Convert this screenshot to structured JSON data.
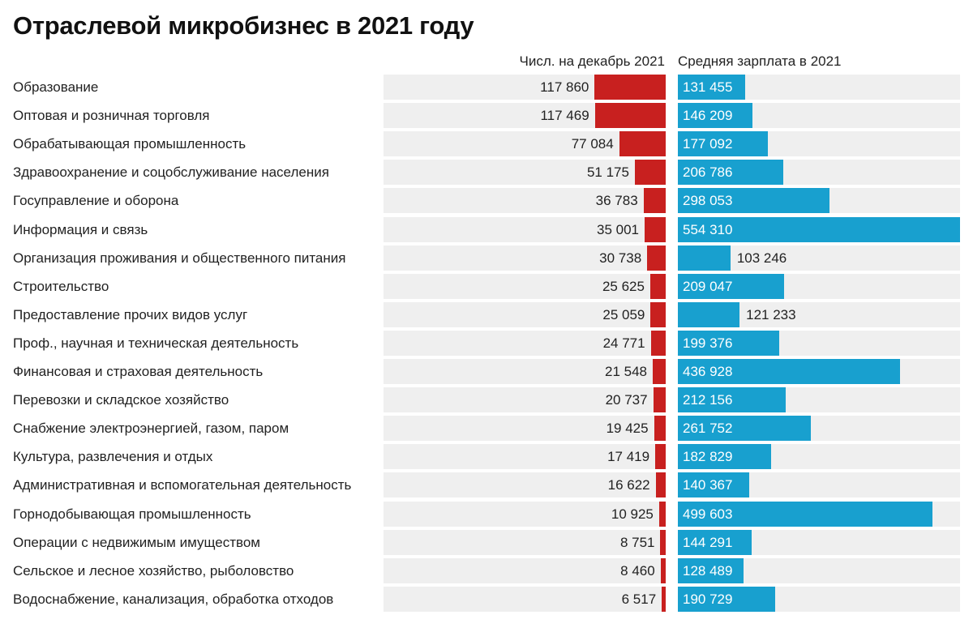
{
  "title": "Отраслевой микробизнес в 2021 году",
  "chart_data": {
    "type": "bar",
    "title": "Отраслевой микробизнес в 2021 году",
    "colors": {
      "count": "#c8201f",
      "salary": "#18a0cf",
      "row_background": "#efefef"
    },
    "legend": "none",
    "grid": false,
    "series": [
      {
        "name": "Числ. на декабрь 2021",
        "values": [
          117860,
          117469,
          77084,
          51175,
          36783,
          35001,
          30738,
          25625,
          25059,
          24771,
          21548,
          20737,
          19425,
          17419,
          16622,
          10925,
          8751,
          8460,
          6517
        ],
        "labels": [
          "117 860",
          "117 469",
          "77 084",
          "51 175",
          "36 783",
          "35 001",
          "30 738",
          "25 625",
          "25 059",
          "24 771",
          "21 548",
          "20 737",
          "19 425",
          "17 419",
          "16 622",
          "10 925",
          "8 751",
          "8 460",
          "6 517"
        ],
        "xlim": [
          0,
          468000
        ]
      },
      {
        "name": "Средняя зарплата в 2021",
        "values": [
          131455,
          146209,
          177092,
          206786,
          298053,
          554310,
          103246,
          209047,
          121233,
          199376,
          436928,
          212156,
          261752,
          182829,
          140367,
          499603,
          144291,
          128489,
          190729
        ],
        "labels": [
          "131 455",
          "146 209",
          "177 092",
          "206 786",
          "298 053",
          "554 310",
          "103 246",
          "209 047",
          "121 233",
          "199 376",
          "436 928",
          "212 156",
          "261 752",
          "182 829",
          "140 367",
          "499 603",
          "144 291",
          "128 489",
          "190 729"
        ],
        "xlim": [
          0,
          554310
        ]
      }
    ],
    "categories": [
      "Образование",
      "Оптовая и розничная торговля",
      "Обрабатывающая промышленность",
      "Здравоохранение и соцобслуживание населения",
      "Госуправление и оборона",
      "Информация и связь",
      "Организация проживания и общественного питания",
      "Строительство",
      "Предоставление прочих видов услуг",
      "Проф., научная и техническая деятельность",
      "Финансовая и страховая деятельность",
      "Перевозки и складское хозяйство",
      "Снабжение электроэнергией, газом, паром",
      "Культура, развлечения и отдых",
      "Административная и вспомогательная деятельность",
      "Горнодобывающая промышленность",
      "Операции с недвижимым имуществом",
      "Сельское и лесное хозяйство, рыболовство",
      "Водоснабжение, канализация, обработка отходов"
    ]
  }
}
